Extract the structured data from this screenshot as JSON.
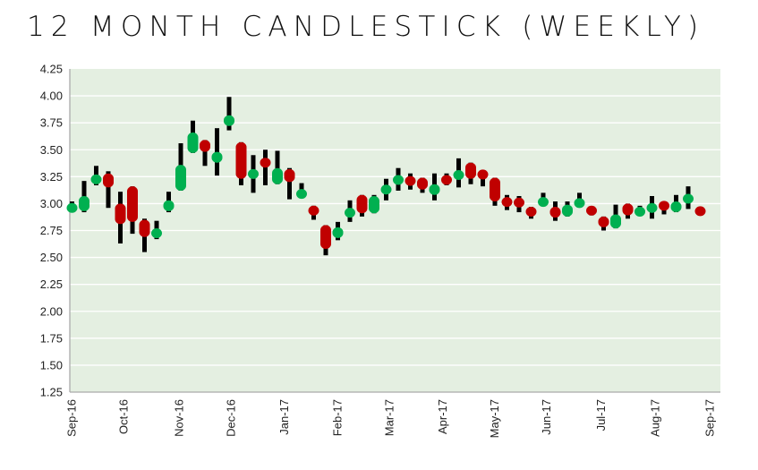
{
  "chart_data": {
    "type": "candlestick",
    "title": "12 MONTH CANDLESTICK (WEEKLY)",
    "xlabel": "",
    "ylabel": "",
    "ylim": [
      1.25,
      4.25
    ],
    "yticks": [
      "4.25",
      "4.00",
      "3.75",
      "3.50",
      "3.25",
      "3.00",
      "2.75",
      "2.50",
      "2.25",
      "2.00",
      "1.75",
      "1.50",
      "1.25"
    ],
    "grid": true,
    "colors": {
      "up": "#00b050",
      "down": "#c00000",
      "wick": "#000000",
      "plot_bg": "#e4efe1",
      "grid": "#ffffff"
    },
    "xticks": [
      {
        "label": "Sep-16",
        "week": 0
      },
      {
        "label": "Oct-16",
        "week": 4.3
      },
      {
        "label": "Nov-16",
        "week": 8.9
      },
      {
        "label": "Dec-16",
        "week": 13.2
      },
      {
        "label": "Jan-17",
        "week": 17.6
      },
      {
        "label": "Feb-17",
        "week": 22
      },
      {
        "label": "Mar-17",
        "week": 26.3
      },
      {
        "label": "Apr-17",
        "week": 30.7
      },
      {
        "label": "May-17",
        "week": 35
      },
      {
        "label": "Jun-17",
        "week": 39.3
      },
      {
        "label": "Jul-17",
        "week": 43.8
      },
      {
        "label": "Aug-17",
        "week": 48.3
      },
      {
        "label": "Sep-17",
        "week": 52.8
      }
    ],
    "ohlc": [
      [
        2.93,
        3.02,
        2.92,
        2.99
      ],
      [
        2.93,
        3.21,
        2.92,
        3.07
      ],
      [
        3.18,
        3.35,
        3.17,
        3.27
      ],
      [
        3.28,
        3.3,
        2.96,
        3.15
      ],
      [
        3.0,
        3.11,
        2.63,
        2.81
      ],
      [
        3.16,
        3.16,
        2.72,
        2.83
      ],
      [
        2.85,
        2.86,
        2.55,
        2.69
      ],
      [
        2.68,
        2.84,
        2.67,
        2.77
      ],
      [
        2.93,
        3.11,
        2.92,
        3.03
      ],
      [
        3.12,
        3.56,
        3.12,
        3.36
      ],
      [
        3.47,
        3.77,
        3.47,
        3.66
      ],
      [
        3.59,
        3.59,
        3.35,
        3.48
      ],
      [
        3.38,
        3.7,
        3.26,
        3.48
      ],
      [
        3.72,
        3.99,
        3.68,
        3.82
      ],
      [
        3.57,
        3.57,
        3.17,
        3.23
      ],
      [
        3.25,
        3.45,
        3.1,
        3.3
      ],
      [
        3.42,
        3.5,
        3.17,
        3.34
      ],
      [
        3.18,
        3.49,
        3.18,
        3.33
      ],
      [
        3.32,
        3.33,
        3.04,
        3.2
      ],
      [
        3.05,
        3.19,
        3.05,
        3.13
      ],
      [
        2.98,
        2.98,
        2.85,
        2.89
      ],
      [
        2.8,
        2.8,
        2.52,
        2.58
      ],
      [
        2.68,
        2.83,
        2.66,
        2.78
      ],
      [
        2.89,
        3.03,
        2.83,
        2.94
      ],
      [
        3.08,
        3.08,
        2.88,
        2.91
      ],
      [
        2.91,
        3.08,
        2.91,
        3.07
      ],
      [
        3.09,
        3.23,
        3.03,
        3.17
      ],
      [
        3.18,
        3.33,
        3.12,
        3.26
      ],
      [
        3.25,
        3.28,
        3.13,
        3.17
      ],
      [
        3.24,
        3.24,
        3.1,
        3.13
      ],
      [
        3.08,
        3.28,
        3.03,
        3.18
      ],
      [
        3.25,
        3.28,
        3.17,
        3.19
      ],
      [
        3.22,
        3.42,
        3.15,
        3.31
      ],
      [
        3.38,
        3.38,
        3.18,
        3.23
      ],
      [
        3.3,
        3.3,
        3.16,
        3.24
      ],
      [
        3.24,
        3.24,
        2.98,
        3.02
      ],
      [
        3.04,
        3.08,
        2.94,
        2.99
      ],
      [
        3.05,
        3.07,
        2.92,
        2.97
      ],
      [
        2.97,
        2.97,
        2.86,
        2.88
      ],
      [
        2.98,
        3.1,
        2.98,
        3.05
      ],
      [
        2.97,
        3.02,
        2.84,
        2.87
      ],
      [
        2.88,
        3.02,
        2.88,
        2.99
      ],
      [
        2.97,
        3.1,
        2.97,
        3.04
      ],
      [
        2.96,
        2.96,
        2.89,
        2.91
      ],
      [
        2.88,
        2.88,
        2.75,
        2.78
      ],
      [
        2.77,
        2.99,
        2.77,
        2.9
      ],
      [
        3.0,
        3.0,
        2.86,
        2.89
      ],
      [
        2.9,
        2.98,
        2.9,
        2.95
      ],
      [
        2.92,
        3.07,
        2.86,
        3.0
      ],
      [
        3.01,
        3.02,
        2.9,
        2.95
      ],
      [
        2.92,
        3.08,
        2.92,
        3.02
      ],
      [
        3.02,
        3.16,
        2.95,
        3.07
      ],
      [
        2.95,
        2.97,
        2.91,
        2.91
      ]
    ]
  }
}
